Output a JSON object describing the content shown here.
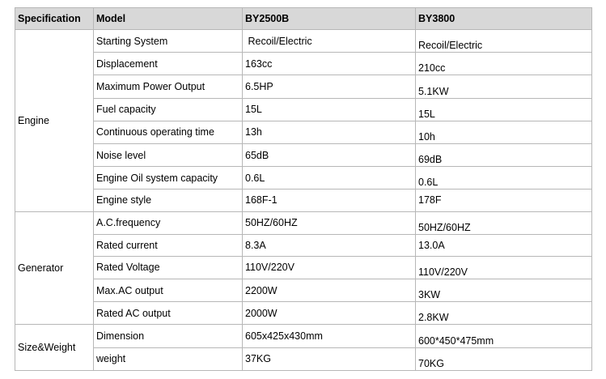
{
  "headers": [
    "Specification",
    "Model",
    "BY2500B",
    "BY3800"
  ],
  "groups": [
    {
      "name": "Engine",
      "rows": [
        {
          "label": "Starting System",
          "by2500b": " Recoil/Electric",
          "by3800": "Recoil/Electric"
        },
        {
          "label": "Displacement",
          "by2500b": "163cc",
          "by3800": "210cc"
        },
        {
          "label": "Maximum Power Output",
          "by2500b": "6.5HP",
          "by3800": "5.1KW"
        },
        {
          "label": "Fuel capacity",
          "by2500b": "15L",
          "by3800": "15L"
        },
        {
          "label": "Continuous operating time",
          "by2500b": "13h",
          "by3800": "10h"
        },
        {
          "label": "Noise level",
          "by2500b": "65dB",
          "by3800": "69dB"
        },
        {
          "label": "Engine Oil system capacity",
          "by2500b": "0.6L",
          "by3800": "0.6L"
        },
        {
          "label": "Engine style",
          "by2500b": "168F-1",
          "by3800": "178F"
        }
      ]
    },
    {
      "name": "Generator",
      "rows": [
        {
          "label": "A.C.frequency",
          "by2500b": "50HZ/60HZ",
          "by3800": "50HZ/60HZ"
        },
        {
          "label": "Rated current",
          "by2500b": "8.3A",
          "by3800": "13.0A"
        },
        {
          "label": "Rated Voltage",
          "by2500b": "110V/220V",
          "by3800": "110V/220V"
        },
        {
          "label": "Max.AC output",
          "by2500b": "2200W",
          "by3800": "3KW"
        },
        {
          "label": "Rated AC output",
          "by2500b": "2000W",
          "by3800": "2.8KW"
        }
      ]
    },
    {
      "name": "Size&Weight",
      "rows": [
        {
          "label": "Dimension",
          "by2500b": "605x425x430mm",
          "by3800": "600*450*475mm"
        },
        {
          "label": "weight",
          "by2500b": "37KG",
          "by3800": "70KG"
        }
      ]
    }
  ]
}
